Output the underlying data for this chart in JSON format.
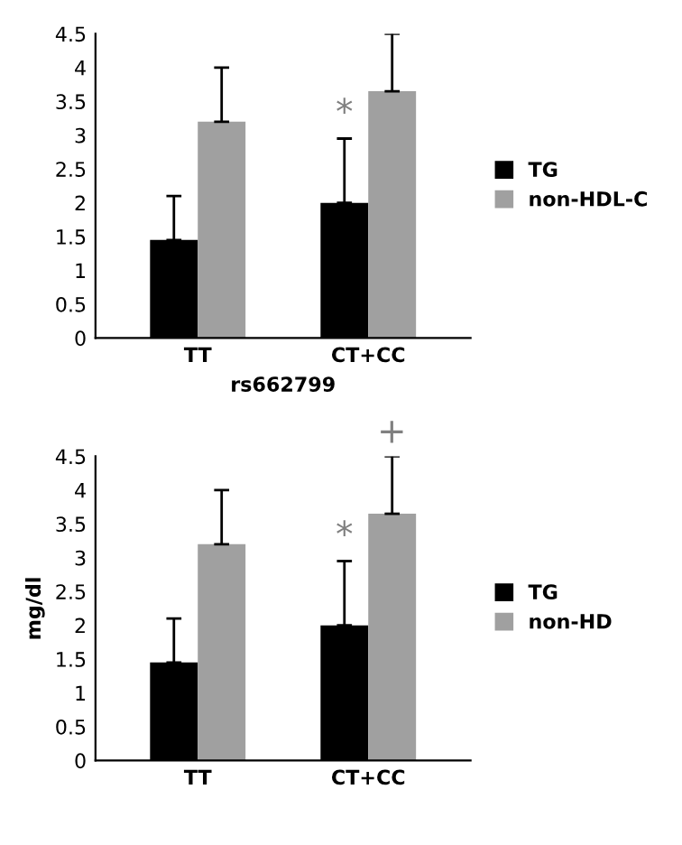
{
  "chart_data": [
    {
      "type": "bar",
      "categories": [
        "TT",
        "CT+CC"
      ],
      "xlabel": "rs662799",
      "ylim": [
        0,
        4.5
      ],
      "yticks": [
        0,
        0.5,
        1,
        1.5,
        2,
        2.5,
        3,
        3.5,
        4,
        4.5
      ],
      "legend": "right",
      "grid": false,
      "series": [
        {
          "name": "TG",
          "color": "#000000",
          "values": [
            1.45,
            2.0
          ],
          "errors": [
            [
              1.45,
              2.1
            ],
            [
              2.0,
              2.95
            ]
          ]
        },
        {
          "name": "non-HDL-C",
          "color": "#a0a0a0",
          "values": [
            3.2,
            3.65
          ],
          "errors": [
            [
              3.2,
              4.0
            ],
            [
              3.65,
              4.5
            ]
          ]
        }
      ],
      "annotations": [
        {
          "text": "*",
          "x": "CT+CC",
          "y": 2.95
        }
      ]
    },
    {
      "type": "bar",
      "categories": [
        "TT",
        "CT+CC"
      ],
      "ylabel": "mg/dl",
      "ylim": [
        0,
        4.5
      ],
      "yticks": [
        0,
        0.5,
        1,
        1.5,
        2,
        2.5,
        3,
        3.5,
        4,
        4.5
      ],
      "legend": "right",
      "grid": false,
      "series": [
        {
          "name": "TG",
          "color": "#000000",
          "values": [
            1.45,
            2.0
          ],
          "errors": [
            [
              1.45,
              2.1
            ],
            [
              2.0,
              2.95
            ]
          ]
        },
        {
          "name": "non-HD",
          "color": "#a0a0a0",
          "values": [
            3.2,
            3.65
          ],
          "errors": [
            [
              3.2,
              4.0
            ],
            [
              3.65,
              4.5
            ]
          ]
        }
      ],
      "annotations": [
        {
          "text": "*",
          "x": "CT+CC",
          "y": 2.95
        },
        "+"
      ]
    }
  ]
}
